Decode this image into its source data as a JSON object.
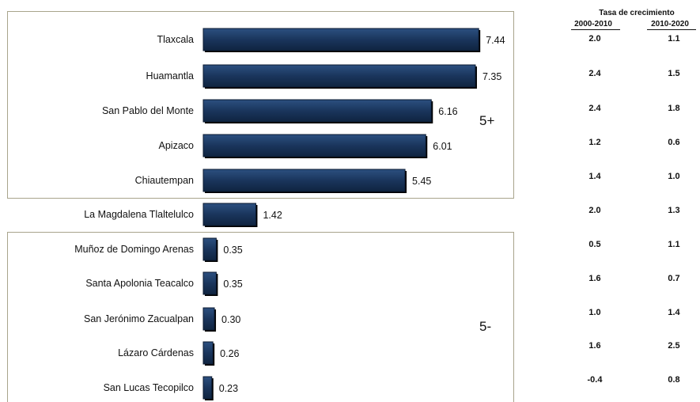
{
  "chart_data": {
    "type": "bar",
    "orientation": "horizontal",
    "categories": [
      "Tlaxcala",
      "Huamantla",
      "San Pablo del Monte",
      "Apizaco",
      "Chiautempan",
      "La Magdalena Tlaltelulco",
      "Muñoz de Domingo Arenas",
      "Santa Apolonia Teacalco",
      "San Jerónimo Zacualpan",
      "Lázaro Cárdenas",
      "San Lucas Tecopilco"
    ],
    "values": [
      7.44,
      7.35,
      6.16,
      6.01,
      5.45,
      1.42,
      0.35,
      0.35,
      0.3,
      0.26,
      0.23
    ],
    "value_labels": [
      "7.44",
      "7.35",
      "6.16",
      "6.01",
      "5.45",
      "1.42",
      "0.35",
      "0.35",
      "0.30",
      "0.26",
      "0.23"
    ],
    "bar_color": "#1a355c",
    "groups": [
      {
        "label": "5+"
      },
      {
        "label": "5-"
      }
    ]
  },
  "rates": {
    "title": "Tasa de crecimiento",
    "columns": [
      "2000-2010",
      "2010-2020"
    ],
    "rows": [
      [
        "2.0",
        "1.1"
      ],
      [
        "2.4",
        "1.5"
      ],
      [
        "2.4",
        "1.8"
      ],
      [
        "1.2",
        "0.6"
      ],
      [
        "1.4",
        "1.0"
      ],
      [
        "2.0",
        "1.3"
      ],
      [
        "0.5",
        "1.1"
      ],
      [
        "1.6",
        "0.7"
      ],
      [
        "1.0",
        "1.4"
      ],
      [
        "1.6",
        "2.5"
      ],
      [
        "-0.4",
        "0.8"
      ]
    ]
  }
}
